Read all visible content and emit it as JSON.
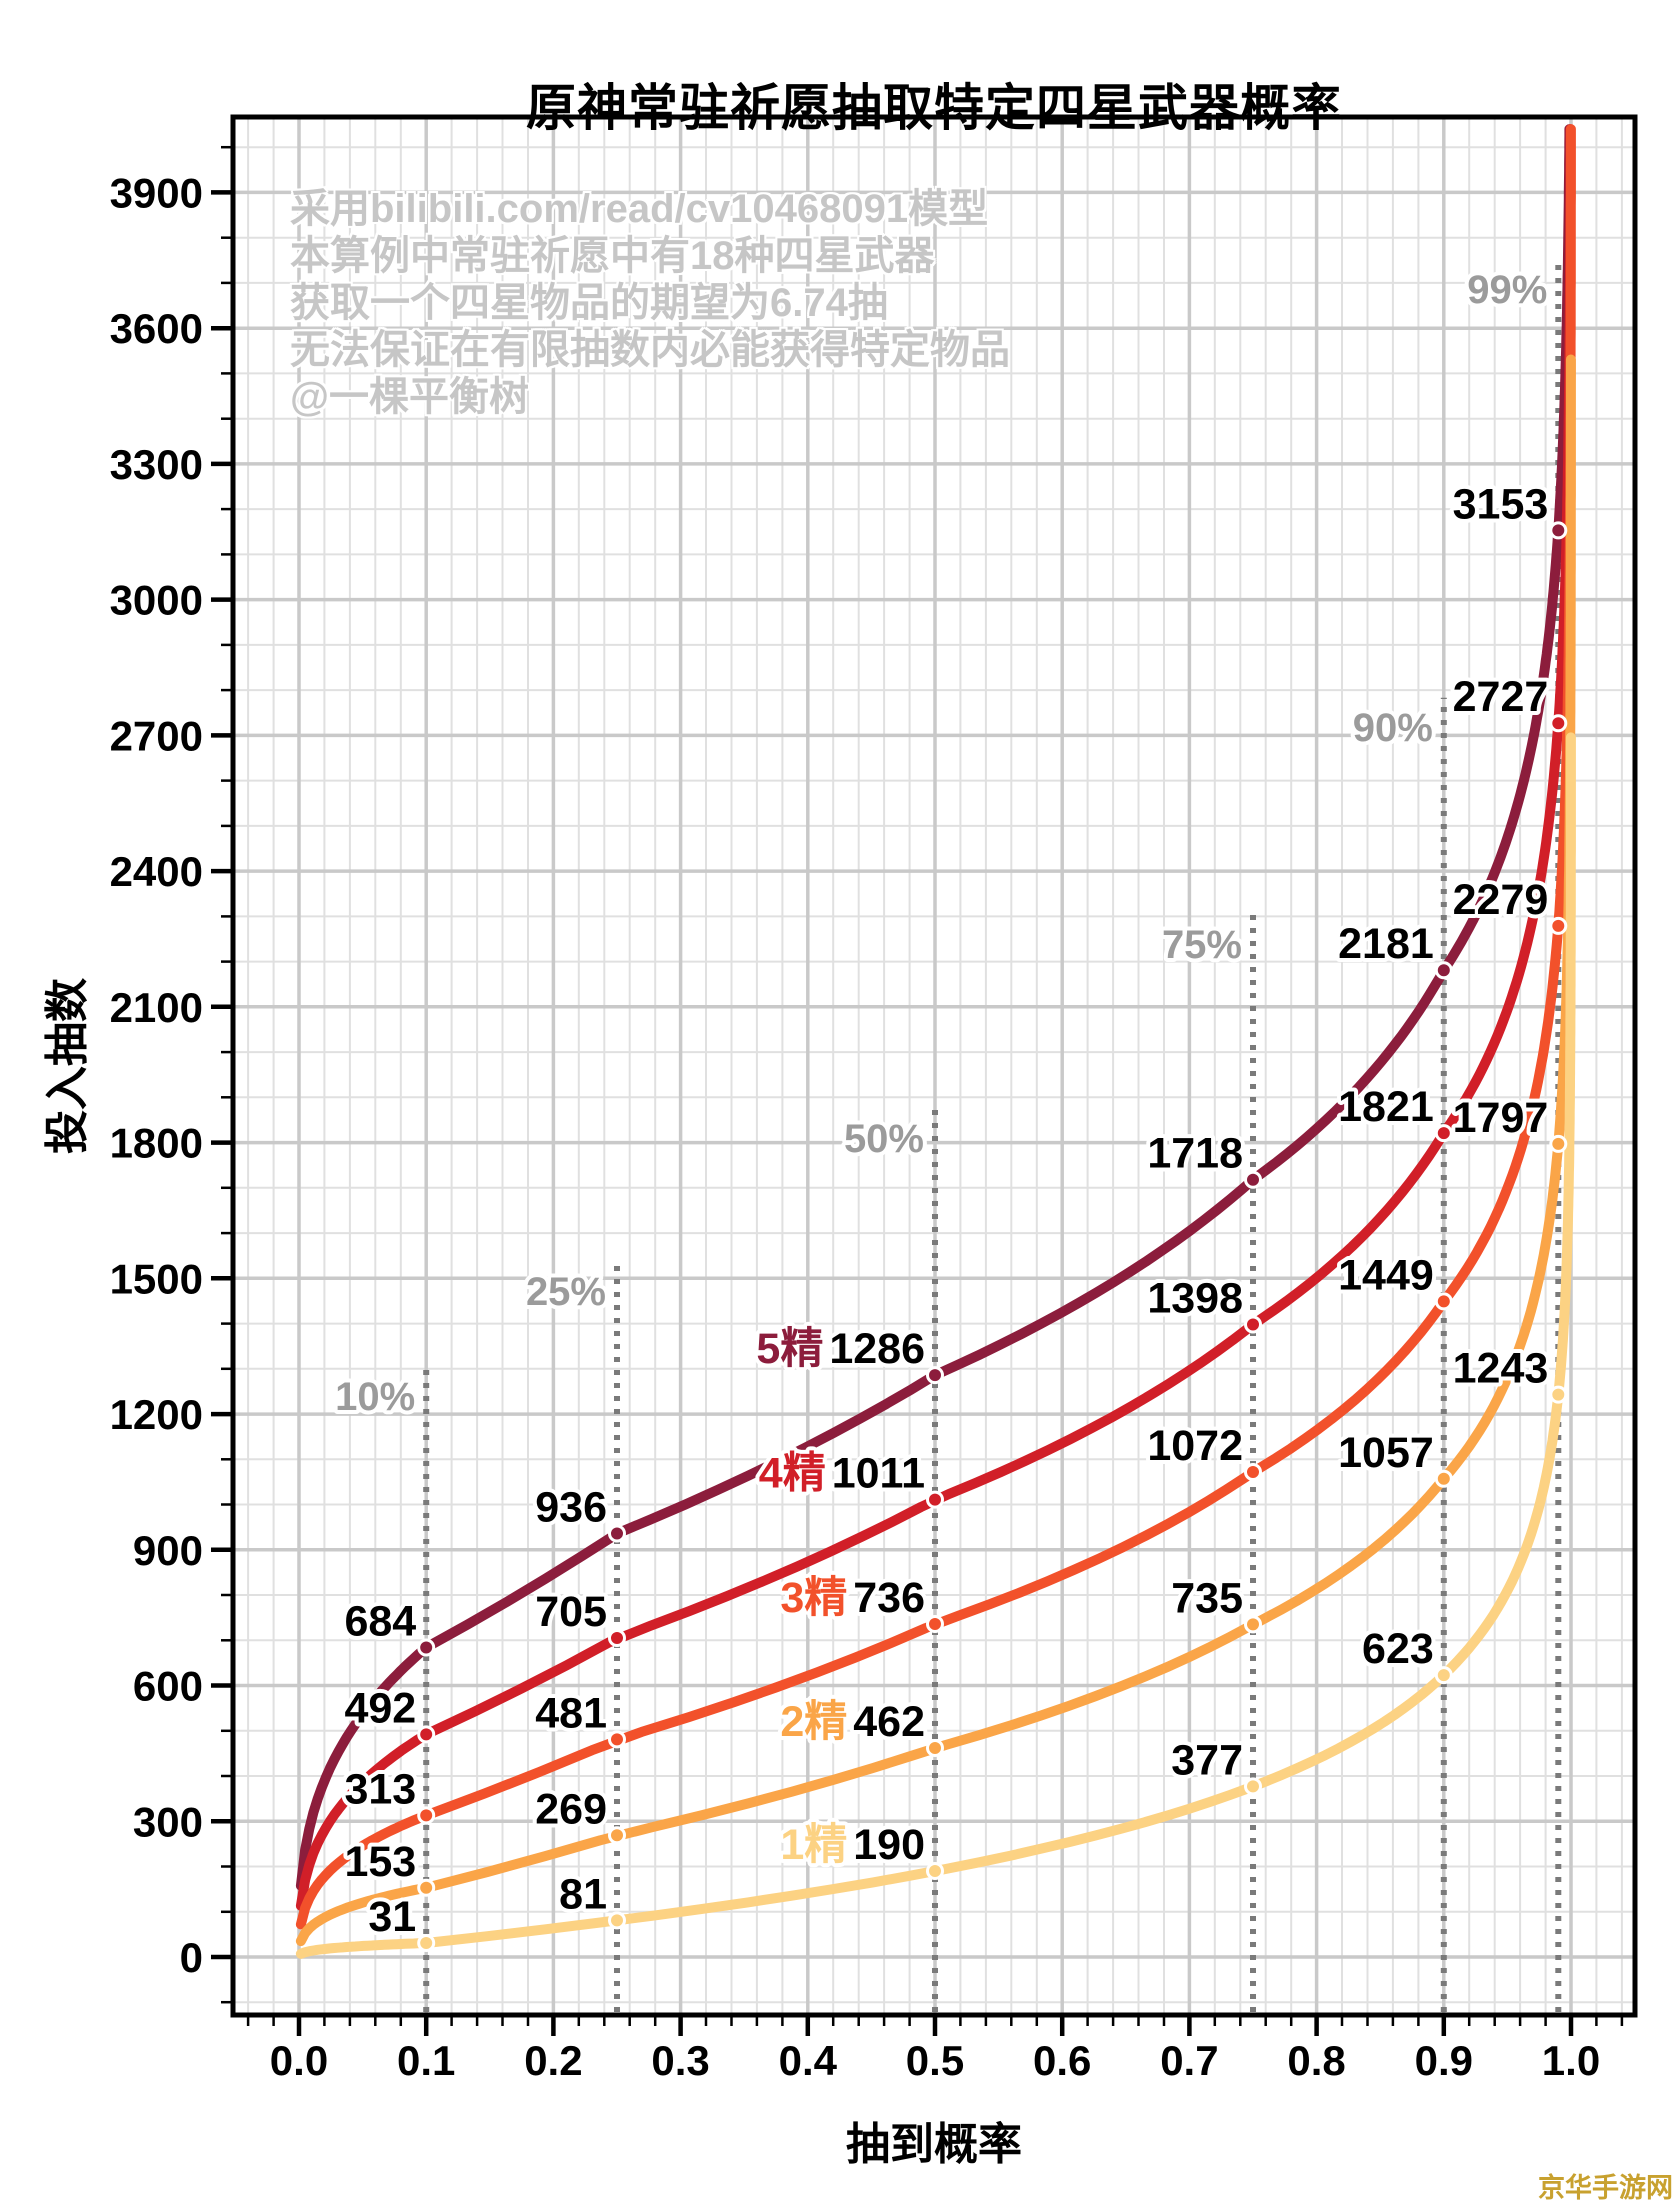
{
  "page": {
    "corner_watermark": "京华手游网",
    "corner_watermark_color": "#C8A12F"
  },
  "chart_data": {
    "type": "line",
    "title": "原神常驻祈愿抽取特定四星武器概率",
    "xlabel": "抽到概率",
    "ylabel": "投入抽数",
    "xlim": [
      -0.052,
      1.05
    ],
    "ylim": [
      -128,
      4067
    ],
    "x_ticks": [
      "0.0",
      "0.1",
      "0.2",
      "0.3",
      "0.4",
      "0.5",
      "0.6",
      "0.7",
      "0.8",
      "0.9",
      "1.0"
    ],
    "x_tick_values": [
      0,
      0.1,
      0.2,
      0.3,
      0.4,
      0.5,
      0.6,
      0.7,
      0.8,
      0.9,
      1.0
    ],
    "y_ticks": [
      0,
      300,
      600,
      900,
      1200,
      1500,
      1800,
      2100,
      2400,
      2700,
      3000,
      3300,
      3600,
      3900
    ],
    "grid": {
      "on": true,
      "x_minor_step": 0.02,
      "y_minor_step": 100,
      "x_major_step": 0.1,
      "y_major_step": 300,
      "major_color": "#c9c9c9",
      "minor_color": "#e0e0e0"
    },
    "legend_position": "inline-labels-at-50-percent",
    "annotation_lines": [
      "采用bilibili.com/read/cv10468091模型",
      "本算例中常驻祈愿中有18种四星武器",
      "获取一个四星物品的期望为6.74抽",
      "无法保证在有限抽数内必能获得特定物品",
      "@一棵平衡树"
    ],
    "annotation_color": "#c6c6c6",
    "percentile_line_color": "#7a7a7a",
    "percentile_label_color": "#9b9b9b",
    "percentiles": [
      {
        "label": "10%",
        "p": 0.1,
        "line_top_n": 1304
      },
      {
        "label": "25%",
        "p": 0.25,
        "line_top_n": 1536
      },
      {
        "label": "50%",
        "p": 0.5,
        "line_top_n": 1874
      },
      {
        "label": "75%",
        "p": 0.75,
        "line_top_n": 2303
      },
      {
        "label": "90%",
        "p": 0.9,
        "line_top_n": 2783
      },
      {
        "label": "99%",
        "p": 0.99,
        "line_top_n": 3751
      }
    ],
    "series_label_index": 2,
    "series": [
      {
        "name": "5精",
        "color": "#8C1D3C",
        "values": [
          684,
          936,
          1286,
          1718,
          2181,
          3153
        ]
      },
      {
        "name": "4精",
        "color": "#D11F28",
        "values": [
          492,
          705,
          1011,
          1398,
          1821,
          2727
        ]
      },
      {
        "name": "3精",
        "color": "#F2512B",
        "values": [
          313,
          481,
          736,
          1072,
          1449,
          2279
        ]
      },
      {
        "name": "2精",
        "color": "#FAA548",
        "values": [
          153,
          269,
          462,
          735,
          1057,
          1797
        ]
      },
      {
        "name": "1精",
        "color": "#FCD283",
        "values": [
          31,
          81,
          190,
          377,
          623,
          1243
        ]
      }
    ]
  }
}
